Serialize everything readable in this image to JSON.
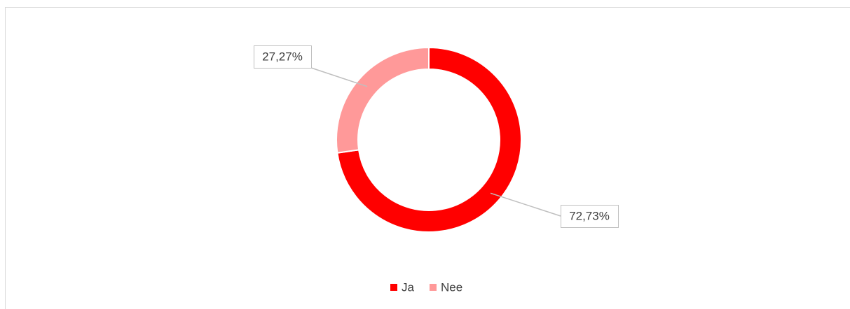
{
  "chart_data": {
    "type": "donut",
    "categories": [
      "Ja",
      "Nee"
    ],
    "values": [
      72.73,
      27.27
    ],
    "value_labels": [
      "72,73%",
      "27,27%"
    ],
    "colors": [
      "#ff0000",
      "#ff9999"
    ],
    "legend": "bottom"
  }
}
